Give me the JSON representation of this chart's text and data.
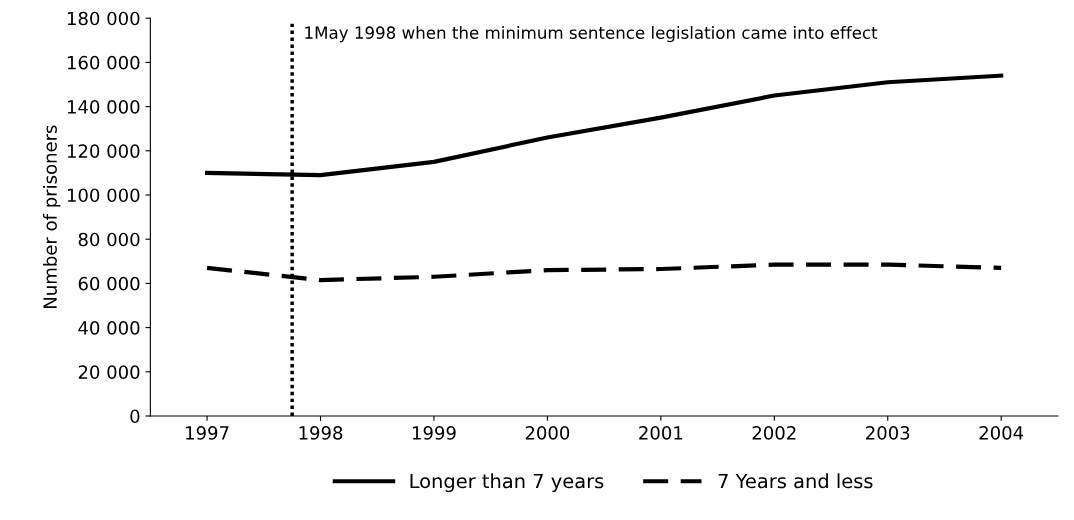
{
  "chart_data": {
    "type": "line",
    "ylabel": "Number of prisoners",
    "x": [
      1997,
      1998,
      1999,
      2000,
      2001,
      2002,
      2003,
      2004
    ],
    "xlim": [
      1996.5,
      2004.5
    ],
    "xticks": [
      1997,
      1998,
      1999,
      2000,
      2001,
      2002,
      2003,
      2004
    ],
    "ylim": [
      0,
      180000
    ],
    "yticks": [
      {
        "value": 0,
        "label": "0"
      },
      {
        "value": 20000,
        "label": "20 000"
      },
      {
        "value": 40000,
        "label": "40 000"
      },
      {
        "value": 60000,
        "label": "60 000"
      },
      {
        "value": 80000,
        "label": "80 000"
      },
      {
        "value": 100000,
        "label": "100 000"
      },
      {
        "value": 120000,
        "label": "120 000"
      },
      {
        "value": 140000,
        "label": "140 000"
      },
      {
        "value": 160000,
        "label": "160 000"
      },
      {
        "value": 180000,
        "label": "180 000"
      }
    ],
    "series": [
      {
        "name": "Longer than 7 years",
        "color": "#000000",
        "line_style": "solid",
        "values": [
          110000,
          109000,
          115000,
          126000,
          135000,
          145000,
          151000,
          154000
        ]
      },
      {
        "name": "7 Years and less",
        "color": "#000000",
        "line_style": "dashed",
        "values": [
          67000,
          61500,
          63000,
          66000,
          66500,
          68500,
          68500,
          67000
        ]
      }
    ],
    "ref_lines": [
      {
        "axis": "x",
        "value": 1997.75,
        "label": "1May 1998 when the minimum sentence legislation came into effect",
        "color": "#000000",
        "line_style": "dotted"
      }
    ],
    "grid": false,
    "legend": "bottom",
    "marker": "none"
  }
}
